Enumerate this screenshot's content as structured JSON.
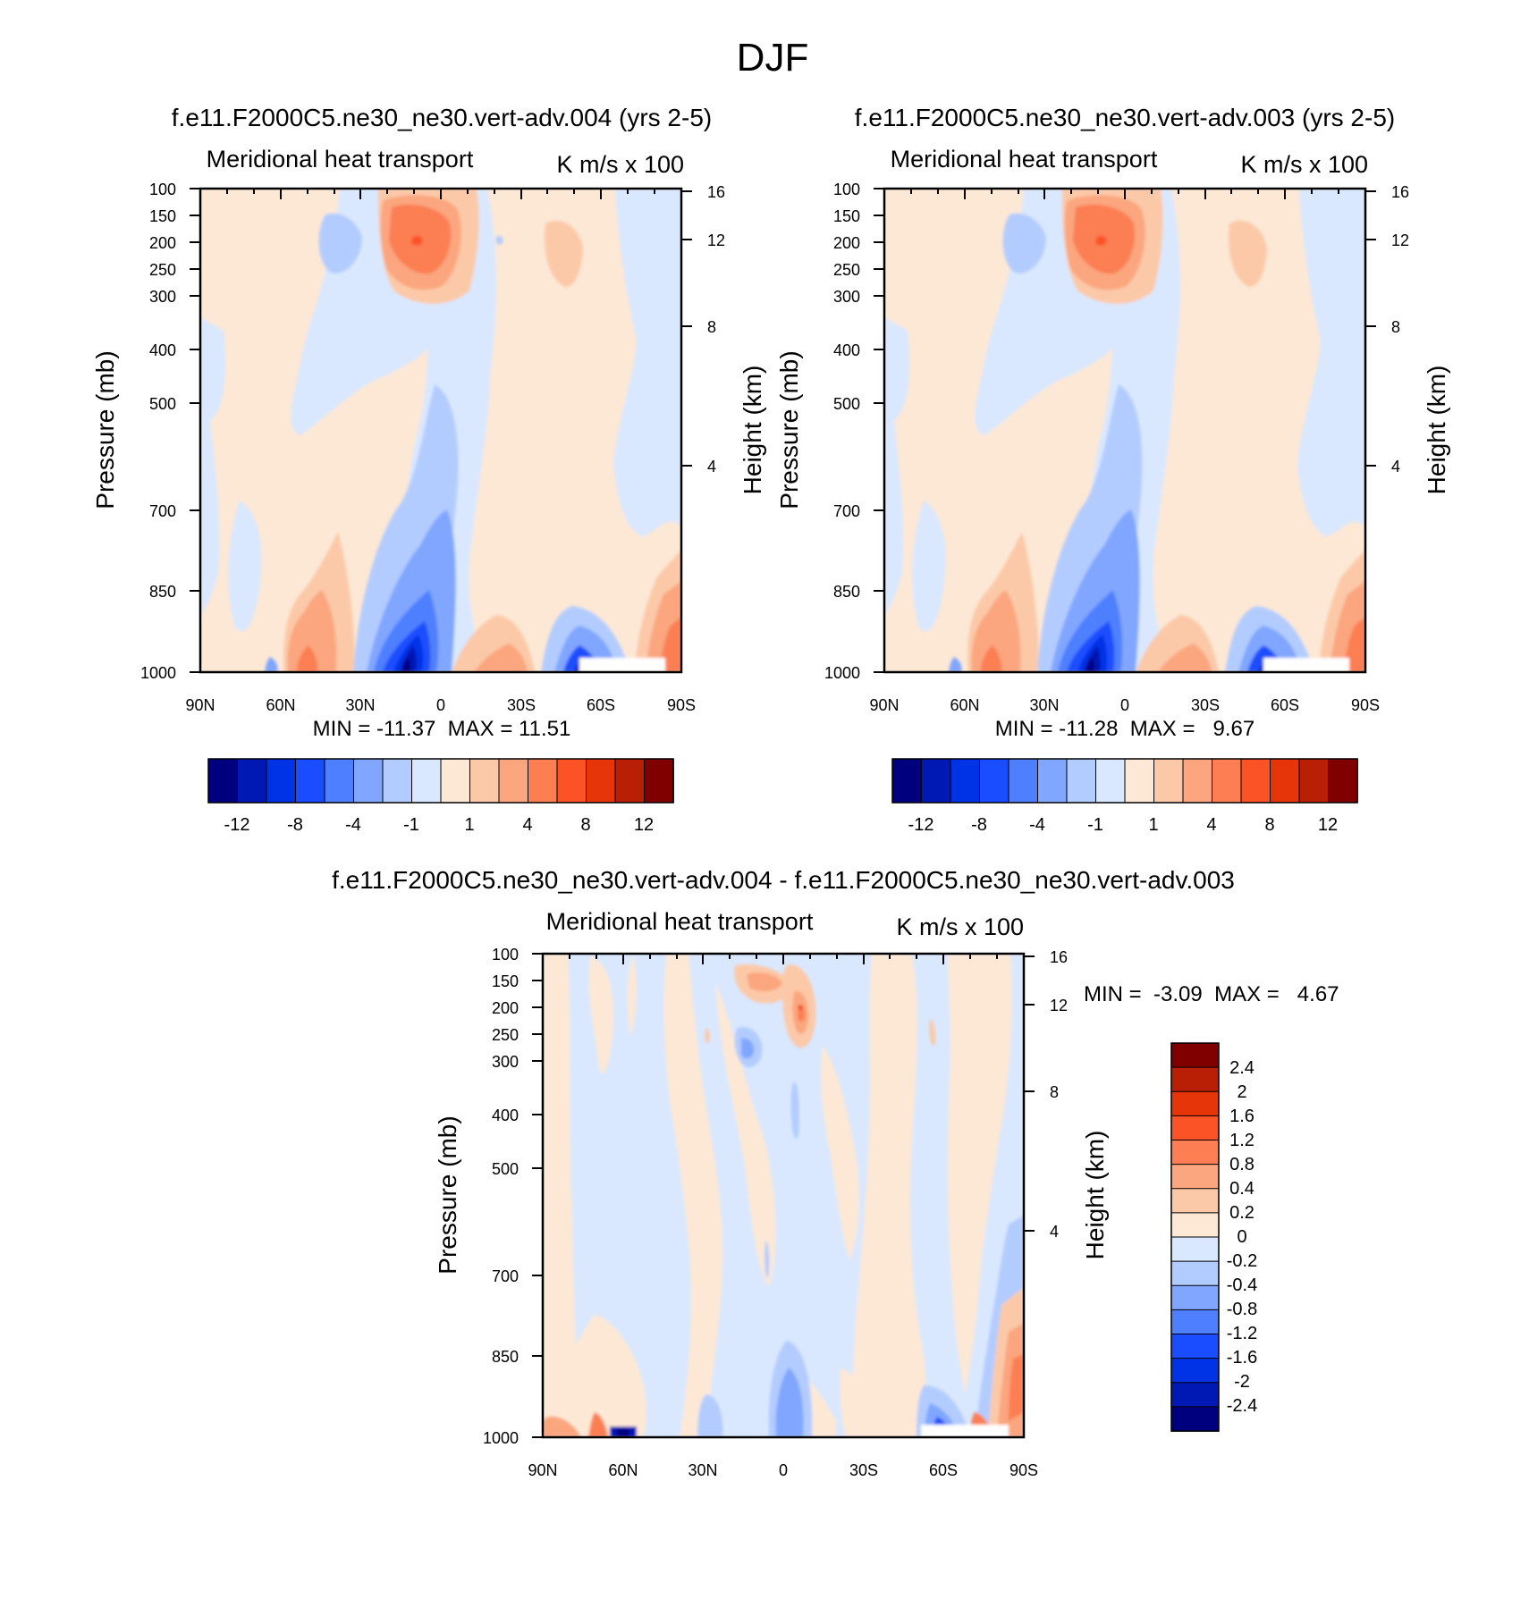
{
  "title": "DJF",
  "pressure_ticks": [
    "100",
    "150",
    "200",
    "250",
    "300",
    "400",
    "500",
    "700",
    "850",
    "1000"
  ],
  "height_ticks": [
    "16",
    "12",
    "8",
    "4"
  ],
  "lat_ticks": [
    "90N",
    "60N",
    "30N",
    "0",
    "30S",
    "60S",
    "90S"
  ],
  "colors": {
    "levels16": [
      "#00007f",
      "#0019b4",
      "#0033e6",
      "#1a4dff",
      "#4d7fff",
      "#80a6ff",
      "#b3ccff",
      "#d9e8ff",
      "#fde8d6",
      "#fcc9a8",
      "#fba67e",
      "#fc7e52",
      "#fc5326",
      "#e63508",
      "#b81f05",
      "#800000"
    ]
  },
  "panels": [
    {
      "title": "f.e11.F2000C5.ne30_ne30.vert-adv.004 (yrs 2-5)",
      "left_label": "Meridional heat transport",
      "right_label": "K m/s x 100",
      "y_axis_label": "Pressure (mb)",
      "y2_axis_label": "Height (km)",
      "min_label": "MIN =",
      "min_value": "-11.37",
      "max_label": "MAX =",
      "max_value": "11.51",
      "colorbar_labels": [
        "-12",
        "-8",
        "-4",
        "-1",
        "1",
        "4",
        "8",
        "12"
      ]
    },
    {
      "title": "f.e11.F2000C5.ne30_ne30.vert-adv.003 (yrs 2-5)",
      "left_label": "Meridional heat transport",
      "right_label": "K m/s x 100",
      "y_axis_label": "Pressure (mb)",
      "y2_axis_label": "Height (km)",
      "min_label": "MIN =",
      "min_value": "-11.28",
      "max_label": "MAX =",
      "max_value": "9.67",
      "colorbar_labels": [
        "-12",
        "-8",
        "-4",
        "-1",
        "1",
        "4",
        "8",
        "12"
      ]
    },
    {
      "title": "f.e11.F2000C5.ne30_ne30.vert-adv.004 - f.e11.F2000C5.ne30_ne30.vert-adv.003",
      "left_label": "Meridional heat transport",
      "right_label": "K m/s x 100",
      "y_axis_label": "Pressure (mb)",
      "y2_axis_label": "Height (km)",
      "min_label": "MIN =",
      "min_value": "-3.09",
      "max_label": "MAX =",
      "max_value": "4.67",
      "colorbar_labels": [
        "2.4",
        "2",
        "1.6",
        "1.2",
        "0.8",
        "0.4",
        "0.2",
        "0",
        "-0.2",
        "-0.4",
        "-0.8",
        "-1.2",
        "-1.6",
        "-2",
        "-2.4"
      ]
    }
  ],
  "chart_data": [
    {
      "type": "heatmap",
      "title": "f.e11.F2000C5.ne30_ne30.vert-adv.004 (yrs 2-5)",
      "xlabel": "",
      "ylabel": "Pressure (mb)",
      "y2label": "Height (km)",
      "x_ticks": [
        "90N",
        "60N",
        "30N",
        "0",
        "30S",
        "60S",
        "90S"
      ],
      "y_ticks": [
        100,
        150,
        200,
        250,
        300,
        400,
        500,
        700,
        850,
        1000
      ],
      "y_scale": "log",
      "xlim": [
        90,
        -90
      ],
      "ylim": [
        100,
        1000
      ],
      "units": "K m/s x 100",
      "min": -11.37,
      "max": 11.51,
      "contour_levels": [
        -12,
        -10,
        -8,
        -6,
        -4,
        -2,
        -1,
        0,
        1,
        2,
        4,
        6,
        8,
        10,
        12
      ],
      "features": [
        {
          "lat": 20,
          "p": 200,
          "value": 10
        },
        {
          "lat": 32,
          "p": 210,
          "value": -3
        },
        {
          "lat": -48,
          "p": 220,
          "value": 2
        },
        {
          "lat": 10,
          "p": 950,
          "value": -11
        },
        {
          "lat": -53,
          "p": 970,
          "value": -6
        },
        {
          "lat": 48,
          "p": 950,
          "value": 5
        },
        {
          "lat": -23,
          "p": 960,
          "value": 3
        },
        {
          "lat": -85,
          "p": 900,
          "value": 6
        }
      ]
    },
    {
      "type": "heatmap",
      "title": "f.e11.F2000C5.ne30_ne30.vert-adv.003 (yrs 2-5)",
      "xlabel": "",
      "ylabel": "Pressure (mb)",
      "y2label": "Height (km)",
      "x_ticks": [
        "90N",
        "60N",
        "30N",
        "0",
        "30S",
        "60S",
        "90S"
      ],
      "y_ticks": [
        100,
        150,
        200,
        250,
        300,
        400,
        500,
        700,
        850,
        1000
      ],
      "y_scale": "log",
      "xlim": [
        90,
        -90
      ],
      "ylim": [
        100,
        1000
      ],
      "units": "K m/s x 100",
      "min": -11.28,
      "max": 9.67,
      "contour_levels": [
        -12,
        -10,
        -8,
        -6,
        -4,
        -2,
        -1,
        0,
        1,
        2,
        4,
        6,
        8,
        10,
        12
      ],
      "features": [
        {
          "lat": 20,
          "p": 200,
          "value": 9
        },
        {
          "lat": 32,
          "p": 210,
          "value": -3
        },
        {
          "lat": -48,
          "p": 220,
          "value": 2
        },
        {
          "lat": 10,
          "p": 950,
          "value": -11
        },
        {
          "lat": -53,
          "p": 970,
          "value": -6
        },
        {
          "lat": 48,
          "p": 950,
          "value": 5
        },
        {
          "lat": -23,
          "p": 960,
          "value": 3
        },
        {
          "lat": -85,
          "p": 900,
          "value": 5
        }
      ]
    },
    {
      "type": "heatmap",
      "title": "f.e11.F2000C5.ne30_ne30.vert-adv.004 - f.e11.F2000C5.ne30_ne30.vert-adv.003",
      "xlabel": "",
      "ylabel": "Pressure (mb)",
      "y2label": "Height (km)",
      "x_ticks": [
        "90N",
        "60N",
        "30N",
        "0",
        "30S",
        "60S",
        "90S"
      ],
      "y_ticks": [
        100,
        150,
        200,
        250,
        300,
        400,
        500,
        700,
        850,
        1000
      ],
      "y_scale": "log",
      "xlim": [
        90,
        -90
      ],
      "ylim": [
        100,
        1000
      ],
      "units": "K m/s x 100",
      "min": -3.09,
      "max": 4.67,
      "contour_levels": [
        -2.4,
        -2,
        -1.6,
        -1.2,
        -0.8,
        -0.4,
        -0.2,
        0,
        0.2,
        0.4,
        0.8,
        1.2,
        1.6,
        2
      ],
      "features": [
        {
          "lat": -5,
          "p": 200,
          "value": 1.2
        },
        {
          "lat": 13,
          "p": 150,
          "value": 0.8
        },
        {
          "lat": 22,
          "p": 240,
          "value": -0.6
        },
        {
          "lat": -5,
          "p": 960,
          "value": -0.8
        },
        {
          "lat": 60,
          "p": 1000,
          "value": -2.4
        },
        {
          "lat": -60,
          "p": 980,
          "value": -1.6
        },
        {
          "lat": -85,
          "p": 900,
          "value": 2
        },
        {
          "lat": 80,
          "p": 990,
          "value": 1.2
        }
      ]
    }
  ]
}
